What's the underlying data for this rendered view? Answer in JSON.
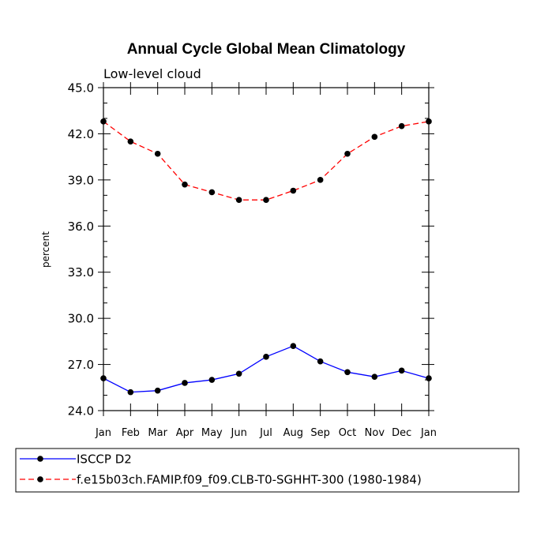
{
  "chart_data": {
    "type": "line",
    "title": "Annual Cycle Global Mean Climatology",
    "subtitle": "Low-level cloud",
    "ylabel": "percent",
    "xlabel": "",
    "ylim": [
      24.0,
      45.0
    ],
    "y_ticks": [
      "24.0",
      "27.0",
      "30.0",
      "33.0",
      "36.0",
      "39.0",
      "42.0",
      "45.0"
    ],
    "y_tick_values": [
      24,
      27,
      30,
      33,
      36,
      39,
      42,
      45
    ],
    "categories": [
      "Jan",
      "Feb",
      "Mar",
      "Apr",
      "May",
      "Jun",
      "Jul",
      "Aug",
      "Sep",
      "Oct",
      "Nov",
      "Dec",
      "Jan"
    ],
    "series": [
      {
        "name": "ISCCP D2",
        "color": "#0000ff",
        "dash": "solid",
        "marker": "filled-circle",
        "values": [
          26.1,
          25.2,
          25.3,
          25.8,
          26.0,
          26.4,
          27.5,
          28.2,
          27.2,
          26.5,
          26.2,
          26.6,
          26.1
        ]
      },
      {
        "name": "f.e15b03ch.FAMIP.f09_f09.CLB-T0-SGHHT-300 (1980-1984)",
        "color": "#ff0000",
        "dash": "dashed",
        "marker": "filled-circle",
        "values": [
          42.8,
          41.5,
          40.7,
          38.7,
          38.2,
          37.7,
          37.7,
          38.3,
          39.0,
          40.7,
          41.8,
          42.5,
          42.8
        ]
      }
    ],
    "legend_position": "bottom"
  }
}
